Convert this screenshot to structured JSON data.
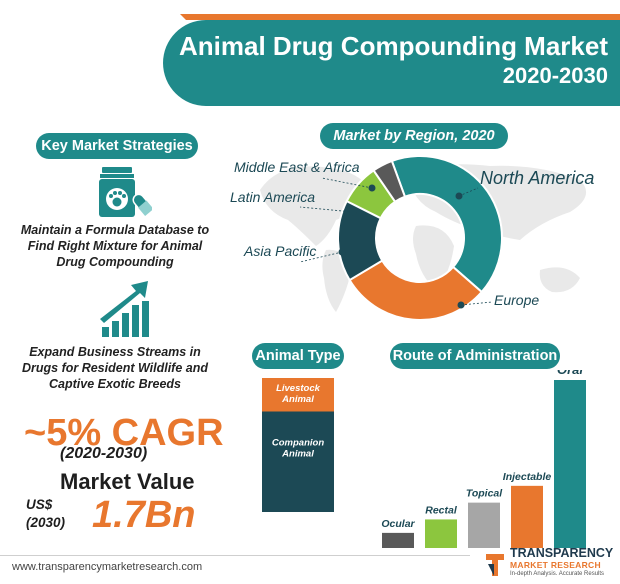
{
  "header": {
    "title_line1": "Animal Drug Compounding Market",
    "title_line2": "2020-2030"
  },
  "left_panel": {
    "heading": "Key Market Strategies",
    "strategy1": [
      "Maintain a Formula Database to",
      "Find Right Mixture for Animal",
      "Drug Compounding"
    ],
    "strategy2": [
      "Expand Business Streams in",
      "Drugs for Resident Wildlife and",
      "Captive Exotic Breeds"
    ],
    "cagr": "~5% CAGR",
    "cagr_period": "(2020-2030)",
    "market_value_label": "Market Value",
    "market_value_currency": "US$",
    "market_value_year": "(2030)",
    "market_value": "1.7Bn"
  },
  "colors": {
    "teal": "#1f8a8a",
    "orange": "#e8772e",
    "navy": "#1c4955",
    "green": "#8cc63e",
    "gray": "#595959",
    "light_gray": "#a6a6a6"
  },
  "chart_data": [
    {
      "type": "pie",
      "title": "Market by Region, 2020",
      "donut": true,
      "slices": [
        {
          "label": "North America",
          "value": 42,
          "color": "#1f8a8a"
        },
        {
          "label": "Europe",
          "value": 30,
          "color": "#e8772e"
        },
        {
          "label": "Asia Pacific",
          "value": 16,
          "color": "#1c4955"
        },
        {
          "label": "Latin America",
          "value": 8,
          "color": "#8cc63e"
        },
        {
          "label": "Middle East & Africa",
          "value": 4,
          "color": "#595959"
        }
      ]
    },
    {
      "type": "bar",
      "title": "Animal Type",
      "stacked": true,
      "categories": [
        "Livestock Animal",
        "Companion Animal"
      ],
      "values": [
        25,
        75
      ],
      "colors": [
        "#e8772e",
        "#1c4955"
      ]
    },
    {
      "type": "bar",
      "title": "Route of Administration",
      "categories": [
        "Ocular",
        "Rectal",
        "Topical",
        "Injectable",
        "Oral"
      ],
      "values": [
        9,
        17,
        27,
        37,
        100
      ],
      "colors": [
        "#595959",
        "#8cc63e",
        "#a6a6a6",
        "#e8772e",
        "#1f8a8a"
      ]
    }
  ]
}
